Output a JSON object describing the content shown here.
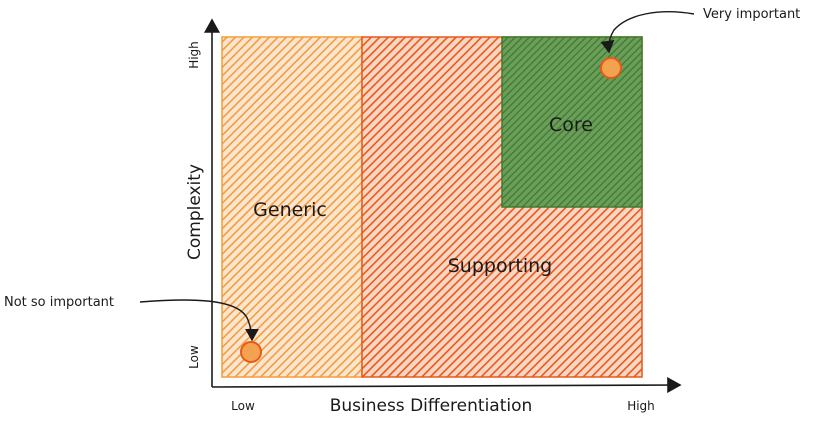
{
  "axes": {
    "x_title": "Business Differentiation",
    "y_title": "Complexity",
    "x_low": "Low",
    "x_high": "High",
    "y_low": "Low",
    "y_high": "High"
  },
  "regions": {
    "generic": "Generic",
    "supporting": "Supporting",
    "core": "Core"
  },
  "annotations": {
    "top": "Very important",
    "bottom": "Not so important"
  },
  "colors": {
    "orange_region": "#f39c3d",
    "supporting_region": "#e8591a",
    "core_region": "#4e8a3c",
    "marker": "#e8591a",
    "ink": "#1a1a1a"
  }
}
